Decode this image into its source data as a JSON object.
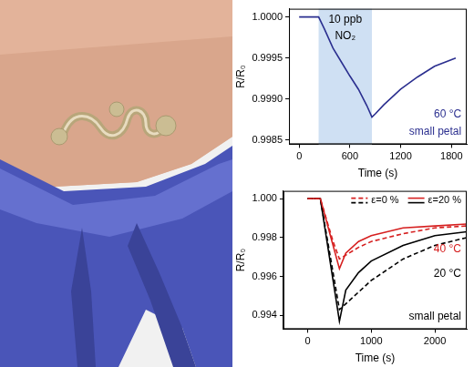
{
  "chart_data": [
    {
      "type": "line",
      "xlabel": "Time (s)",
      "ylabel": "R/R₀",
      "xlim": [
        -120,
        1980
      ],
      "xticks": [
        0,
        600,
        1200,
        1800
      ],
      "ylim": [
        0.99845,
        1.0001
      ],
      "yticks": [
        {
          "value": 0.9985,
          "label": "0.9985"
        },
        {
          "value": 0.999,
          "label": "0.9990"
        },
        {
          "value": 0.9995,
          "label": "0.9995"
        },
        {
          "value": 1.0,
          "label": "1.0000"
        }
      ],
      "grid": false,
      "span": [
        230,
        860
      ],
      "annotations": [
        {
          "text": "10 ppb",
          "color": "#000000"
        },
        {
          "text": "NO₂",
          "color": "#000000"
        },
        {
          "text": "60 °C",
          "color": "#2b2f8f"
        },
        {
          "text": "small petal",
          "color": "#2b2f8f"
        }
      ],
      "x": [
        0,
        100,
        200,
        230,
        300,
        400,
        500,
        600,
        700,
        800,
        860,
        900,
        1000,
        1200,
        1400,
        1600,
        1850
      ],
      "series": [
        {
          "color": "#2b2f8f",
          "line_style": "solid",
          "values": [
            1.0,
            1.0,
            1.0,
            1.0,
            0.99985,
            0.99962,
            0.99945,
            0.99928,
            0.99912,
            0.99892,
            0.99878,
            0.99882,
            0.99893,
            0.99912,
            0.99927,
            0.9994,
            0.9995
          ]
        }
      ]
    },
    {
      "type": "line",
      "xlabel": "Time (s)",
      "ylabel": "R/R₀",
      "xlim": [
        -380,
        2500
      ],
      "xticks": [
        0,
        1000,
        2000
      ],
      "ylim": [
        0.9933,
        1.0004
      ],
      "yticks": [
        {
          "value": 0.994,
          "label": "0.994"
        },
        {
          "value": 0.996,
          "label": "0.996"
        },
        {
          "value": 0.998,
          "label": "0.998"
        },
        {
          "value": 1.0,
          "label": "1.000"
        }
      ],
      "grid": false,
      "legend": "upper right",
      "annotations": [
        {
          "text": "40 °C",
          "color": "#d62020"
        },
        {
          "text": "20 °C",
          "color": "#000000"
        },
        {
          "text": "small petal",
          "color": "#000000"
        }
      ],
      "x": [
        0,
        200,
        300,
        400,
        500,
        600,
        800,
        1000,
        1500,
        2000,
        2500
      ],
      "series": [
        {
          "name": "ε=0 %",
          "color": "#d62020",
          "line_style": "dashed",
          "values": [
            1.0,
            1.0,
            0.9989,
            0.9978,
            0.9969,
            0.9971,
            0.9975,
            0.9978,
            0.9982,
            0.9985,
            0.9986
          ]
        },
        {
          "name": "ε=0 %",
          "color": "#000000",
          "line_style": "dashed",
          "values": [
            1.0,
            1.0,
            0.9981,
            0.9962,
            0.9943,
            0.9946,
            0.9952,
            0.9958,
            0.9969,
            0.9976,
            0.998
          ]
        },
        {
          "name": "ε=20 %",
          "color": "#d62020",
          "line_style": "solid",
          "values": [
            1.0,
            1.0,
            0.9988,
            0.9976,
            0.9964,
            0.9972,
            0.9978,
            0.9981,
            0.9985,
            0.9986,
            0.9987
          ]
        },
        {
          "name": "ε=20 %",
          "color": "#000000",
          "line_style": "solid",
          "values": [
            1.0,
            1.0,
            0.9979,
            0.9958,
            0.9937,
            0.9953,
            0.9962,
            0.9968,
            0.9976,
            0.9981,
            0.9983
          ]
        }
      ]
    }
  ]
}
